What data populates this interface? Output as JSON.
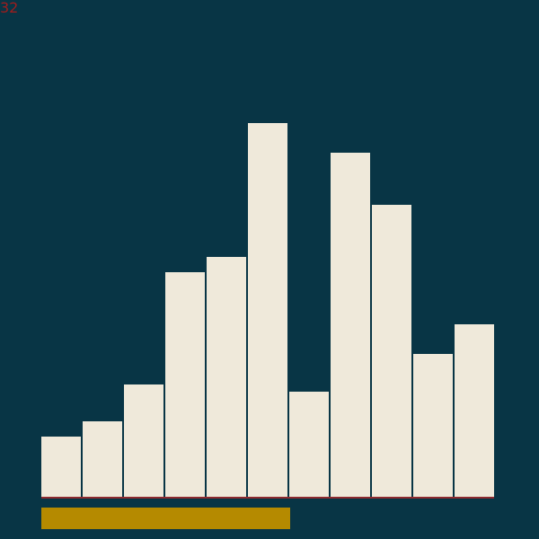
{
  "hud": {
    "score": "32"
  },
  "game": {
    "bars": [
      {
        "value": 67
      },
      {
        "value": 84
      },
      {
        "value": 125
      },
      {
        "value": 250
      },
      {
        "value": 267
      },
      {
        "value": 416
      },
      {
        "value": 117
      },
      {
        "value": 383
      },
      {
        "value": 325
      },
      {
        "value": 159
      },
      {
        "value": 192
      }
    ],
    "max_value": 416,
    "progress": 0.55,
    "colors": {
      "background": "#083545",
      "bar": "#efe9da",
      "baseline": "#8d2a2f",
      "progress": "#b58a00",
      "score": "#9f1d1d"
    }
  }
}
